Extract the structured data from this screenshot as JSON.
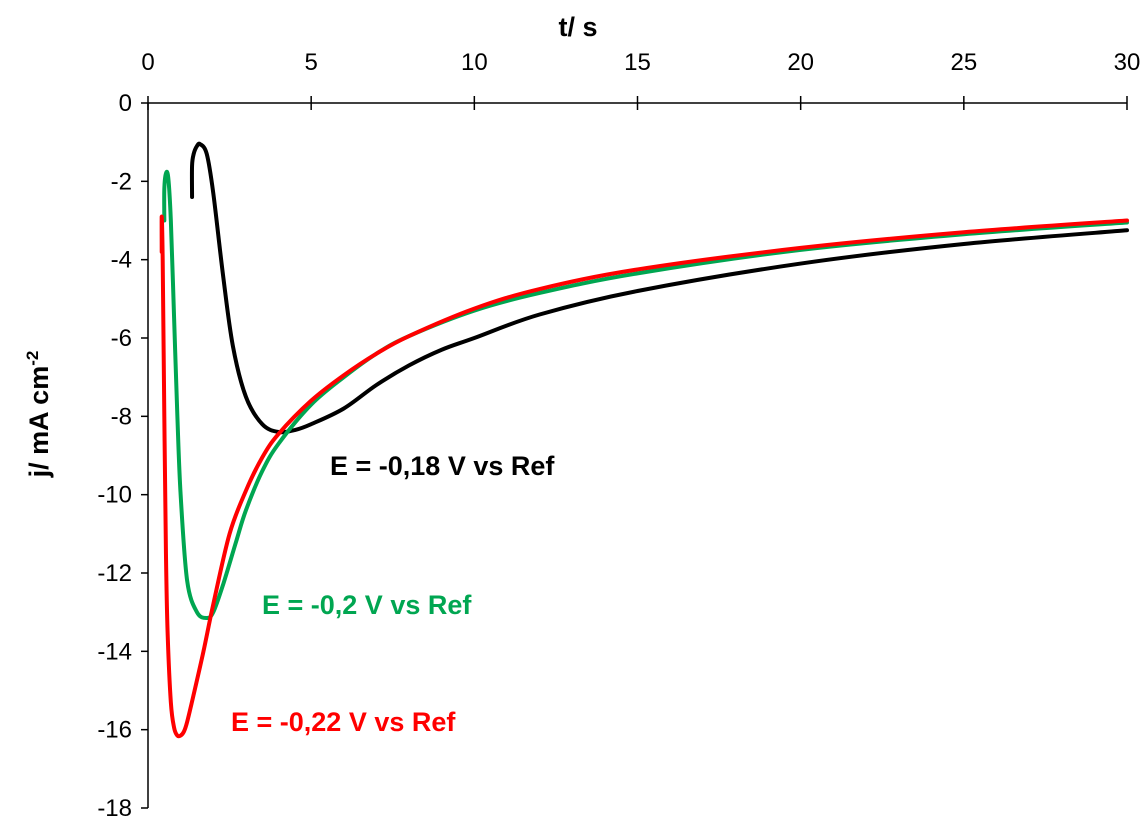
{
  "chart_data": {
    "type": "line",
    "xlabel": "t/ s",
    "ylabel": "j/ mA cm",
    "ylabel_superscript": "-2",
    "xlim": [
      0,
      30
    ],
    "ylim": [
      -18,
      0
    ],
    "x_ticks": [
      0,
      5,
      10,
      15,
      20,
      25,
      30
    ],
    "y_ticks": [
      0,
      -2,
      -4,
      -6,
      -8,
      -10,
      -12,
      -14,
      -16,
      -18
    ],
    "x_axis_position": "top",
    "grid": false,
    "legend": "none",
    "series": [
      {
        "label": "E = -0,18 V vs Ref",
        "color": "#000000",
        "x": [
          1.35,
          1.35,
          1.4,
          1.5,
          1.6,
          1.8,
          2.0,
          2.3,
          2.6,
          3.0,
          3.5,
          4.0,
          4.5,
          5.0,
          6.0,
          7.0,
          8.0,
          9.0,
          10.0,
          12.0,
          15.0,
          20.0,
          25.0,
          30.0
        ],
        "y": [
          -2.4,
          -1.6,
          -1.3,
          -1.1,
          -1.05,
          -1.3,
          -2.3,
          -4.4,
          -6.2,
          -7.5,
          -8.2,
          -8.4,
          -8.35,
          -8.2,
          -7.8,
          -7.2,
          -6.7,
          -6.3,
          -6.0,
          -5.4,
          -4.8,
          -4.1,
          -3.6,
          -3.25
        ]
      },
      {
        "label": "E = -0,2 V vs Ref",
        "color": "#00A651",
        "x": [
          0.5,
          0.5,
          0.55,
          0.62,
          0.7,
          0.8,
          0.9,
          1.0,
          1.2,
          1.5,
          1.8,
          2.0,
          2.3,
          2.7,
          3.0,
          3.5,
          4.0,
          5.0,
          6.0,
          7.0,
          8.0,
          10.0,
          12.0,
          15.0,
          20.0,
          25.0,
          30.0
        ],
        "y": [
          -3.0,
          -2.2,
          -1.8,
          -1.9,
          -3.0,
          -5.5,
          -8.0,
          -10.0,
          -12.2,
          -13.0,
          -13.15,
          -13.0,
          -12.3,
          -11.2,
          -10.4,
          -9.4,
          -8.7,
          -7.7,
          -7.0,
          -6.4,
          -5.95,
          -5.3,
          -4.85,
          -4.35,
          -3.75,
          -3.35,
          -3.05
        ]
      },
      {
        "label": "E = -0,22 V vs Ref",
        "color": "#FF0000",
        "x": [
          0.42,
          0.42,
          0.45,
          0.5,
          0.55,
          0.6,
          0.7,
          0.8,
          0.9,
          1.0,
          1.1,
          1.2,
          1.4,
          1.7,
          2.0,
          2.5,
          3.0,
          3.5,
          4.0,
          5.0,
          6.0,
          7.0,
          8.0,
          10.0,
          12.0,
          15.0,
          20.0,
          25.0,
          30.0
        ],
        "y": [
          -3.8,
          -2.9,
          -4.0,
          -8.0,
          -11.5,
          -13.5,
          -15.3,
          -15.95,
          -16.15,
          -16.15,
          -16.05,
          -15.8,
          -15.1,
          -14.0,
          -12.8,
          -11.0,
          -9.9,
          -9.05,
          -8.45,
          -7.6,
          -6.95,
          -6.4,
          -5.95,
          -5.25,
          -4.75,
          -4.25,
          -3.7,
          -3.3,
          -3.0
        ]
      }
    ]
  }
}
